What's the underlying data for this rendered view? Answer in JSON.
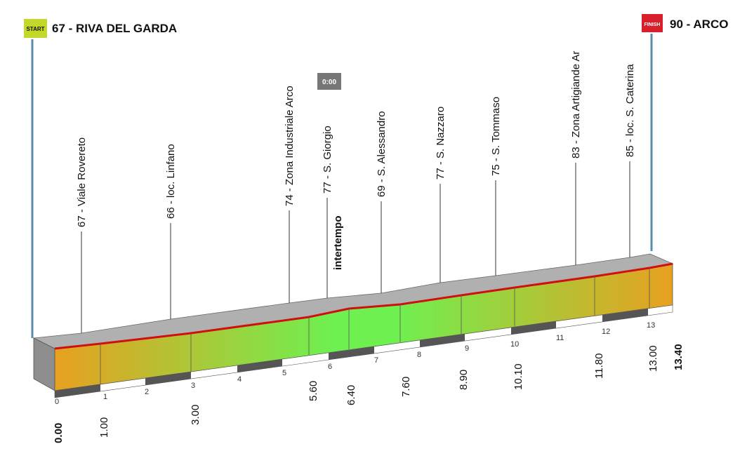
{
  "start": {
    "badge": "START",
    "label": "67 - RIVA DEL GARDA"
  },
  "finish": {
    "badge": "FINISH",
    "label": "90 - ARCO"
  },
  "checkpoint": {
    "time": "0:00",
    "label": "intertempo"
  },
  "waypoints": [
    "67 - Viale Rovereto",
    "66 - loc. Linfano",
    "74 - Zona Industriale Arco",
    "77 - S. Giorgio",
    "69 - S. Alessandro",
    "77 - S. Nazzaro",
    "75 - S. Tommaso",
    "83 - Zona Artigiande Ar",
    "85 - loc. S. Caterina"
  ],
  "distances": [
    "0.00",
    "1.00",
    "3.00",
    "5.60",
    "6.40",
    "7.60",
    "8.90",
    "10.10",
    "11.80",
    "13.00",
    "13.40"
  ],
  "scale": [
    "0",
    "1",
    "2",
    "3",
    "4",
    "5",
    "6",
    "7",
    "8",
    "9",
    "10",
    "11",
    "12",
    "13"
  ]
}
